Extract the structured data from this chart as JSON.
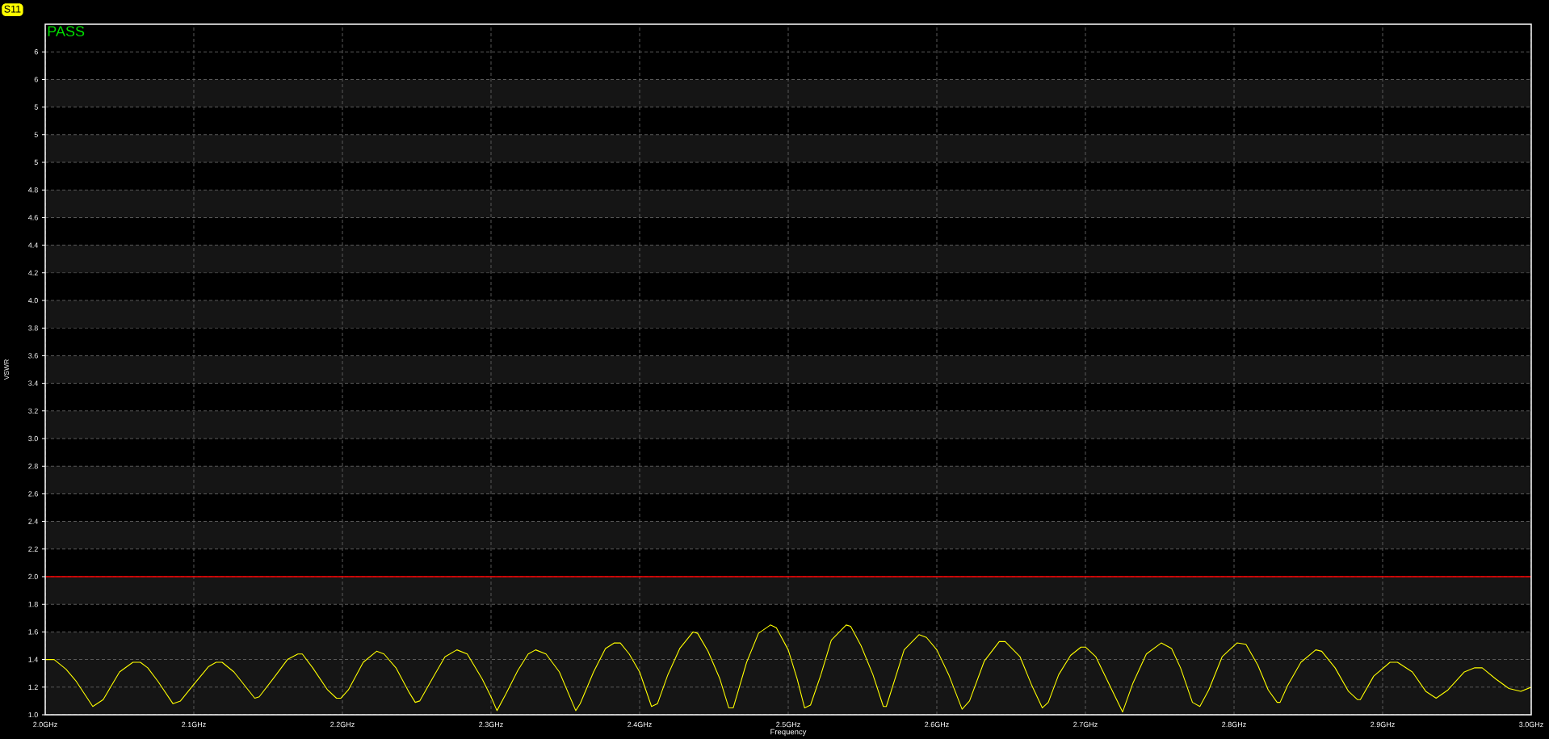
{
  "chart_data": {
    "type": "line",
    "xlabel": "Frequency",
    "ylabel": "VSWR",
    "annotations": [
      "PASS"
    ],
    "x": [
      2.0,
      2.006,
      2.014,
      2.021,
      2.032,
      2.039,
      2.05,
      2.059,
      2.064,
      2.069,
      2.076,
      2.086,
      2.091,
      2.1,
      2.11,
      2.115,
      2.119,
      2.127,
      2.141,
      2.144,
      2.154,
      2.163,
      2.17,
      2.173,
      2.18,
      2.19,
      2.196,
      2.199,
      2.204,
      2.214,
      2.223,
      2.228,
      2.236,
      2.245,
      2.249,
      2.252,
      2.262,
      2.269,
      2.277,
      2.284,
      2.294,
      2.3,
      2.304,
      2.31,
      2.318,
      2.325,
      2.33,
      2.337,
      2.346,
      2.357,
      2.36,
      2.369,
      2.377,
      2.383,
      2.387,
      2.393,
      2.4,
      2.408,
      2.412,
      2.419,
      2.427,
      2.436,
      2.439,
      2.446,
      2.454,
      2.46,
      2.463,
      2.472,
      2.48,
      2.488,
      2.492,
      2.5,
      2.506,
      2.511,
      2.515,
      2.522,
      2.529,
      2.539,
      2.542,
      2.549,
      2.557,
      2.564,
      2.566,
      2.578,
      2.588,
      2.593,
      2.6,
      2.608,
      2.617,
      2.622,
      2.632,
      2.642,
      2.646,
      2.656,
      2.664,
      2.671,
      2.675,
      2.682,
      2.69,
      2.697,
      2.7,
      2.707,
      2.716,
      2.725,
      2.732,
      2.741,
      2.751,
      2.758,
      2.764,
      2.772,
      2.777,
      2.783,
      2.792,
      2.802,
      2.808,
      2.816,
      2.823,
      2.829,
      2.831,
      2.836,
      2.845,
      2.855,
      2.859,
      2.868,
      2.877,
      2.883,
      2.885,
      2.894,
      2.905,
      2.91,
      2.92,
      2.929,
      2.936,
      2.944,
      2.955,
      2.962,
      2.967,
      2.976,
      2.985,
      2.993,
      3.0
    ],
    "series": [
      {
        "name": "S11",
        "color": "#ffff00",
        "values": [
          1.4,
          1.4,
          1.33,
          1.24,
          1.06,
          1.11,
          1.31,
          1.38,
          1.38,
          1.34,
          1.24,
          1.08,
          1.1,
          1.22,
          1.35,
          1.38,
          1.38,
          1.31,
          1.12,
          1.13,
          1.27,
          1.4,
          1.44,
          1.44,
          1.34,
          1.18,
          1.12,
          1.12,
          1.18,
          1.38,
          1.46,
          1.44,
          1.34,
          1.16,
          1.09,
          1.1,
          1.29,
          1.42,
          1.47,
          1.44,
          1.26,
          1.13,
          1.03,
          1.15,
          1.32,
          1.44,
          1.47,
          1.44,
          1.31,
          1.03,
          1.08,
          1.31,
          1.48,
          1.52,
          1.52,
          1.44,
          1.31,
          1.06,
          1.08,
          1.29,
          1.48,
          1.6,
          1.59,
          1.46,
          1.26,
          1.05,
          1.05,
          1.38,
          1.59,
          1.65,
          1.63,
          1.47,
          1.26,
          1.05,
          1.07,
          1.29,
          1.54,
          1.65,
          1.64,
          1.5,
          1.29,
          1.06,
          1.06,
          1.47,
          1.58,
          1.56,
          1.47,
          1.29,
          1.04,
          1.1,
          1.39,
          1.53,
          1.53,
          1.42,
          1.21,
          1.05,
          1.09,
          1.29,
          1.43,
          1.49,
          1.49,
          1.42,
          1.22,
          1.02,
          1.23,
          1.44,
          1.52,
          1.48,
          1.34,
          1.09,
          1.06,
          1.18,
          1.42,
          1.52,
          1.51,
          1.36,
          1.18,
          1.09,
          1.09,
          1.21,
          1.38,
          1.47,
          1.46,
          1.34,
          1.17,
          1.11,
          1.11,
          1.28,
          1.38,
          1.38,
          1.31,
          1.17,
          1.12,
          1.18,
          1.31,
          1.34,
          1.34,
          1.26,
          1.19,
          1.17,
          1.2
        ]
      }
    ],
    "xlim": [
      2.0,
      3.0
    ],
    "ylim": [
      1.0,
      6.0
    ],
    "xticks": [
      {
        "value": 2.0,
        "label": "2.0GHz"
      },
      {
        "value": 2.1,
        "label": "2.1GHz"
      },
      {
        "value": 2.2,
        "label": "2.2GHz"
      },
      {
        "value": 2.3,
        "label": "2.3GHz"
      },
      {
        "value": 2.4,
        "label": "2.4GHz"
      },
      {
        "value": 2.5,
        "label": "2.5GHz"
      },
      {
        "value": 2.6,
        "label": "2.6GHz"
      },
      {
        "value": 2.7,
        "label": "2.7GHz"
      },
      {
        "value": 2.8,
        "label": "2.8GHz"
      },
      {
        "value": 2.9,
        "label": "2.9GHz"
      },
      {
        "value": 3.0,
        "label": "3.0GHz"
      }
    ],
    "yticks": [
      {
        "value": 1.0,
        "label": "1.0"
      },
      {
        "value": 1.2,
        "label": "1.2"
      },
      {
        "value": 1.4,
        "label": "1.4"
      },
      {
        "value": 1.6,
        "label": "1.6"
      },
      {
        "value": 1.8,
        "label": "1.8"
      },
      {
        "value": 2.0,
        "label": "2.0"
      },
      {
        "value": 2.2,
        "label": "2.2"
      },
      {
        "value": 2.4,
        "label": "2.4"
      },
      {
        "value": 2.6,
        "label": "2.6"
      },
      {
        "value": 2.8,
        "label": "2.8"
      },
      {
        "value": 3.0,
        "label": "3.0"
      },
      {
        "value": 3.2,
        "label": "3.2"
      },
      {
        "value": 3.4,
        "label": "3.4"
      },
      {
        "value": 3.6,
        "label": "3.6"
      },
      {
        "value": 3.8,
        "label": "3.8"
      },
      {
        "value": 4.0,
        "label": "4.0"
      },
      {
        "value": 4.2,
        "label": "4.2"
      },
      {
        "value": 4.4,
        "label": "4.4"
      },
      {
        "value": 4.6,
        "label": "4.6"
      },
      {
        "value": 4.8,
        "label": "4.8"
      },
      {
        "value": 5.0,
        "label": "5"
      },
      {
        "value": 5.2,
        "label": "5"
      },
      {
        "value": 5.4,
        "label": "5"
      },
      {
        "value": 5.6,
        "label": "6"
      },
      {
        "value": 5.8,
        "label": "6"
      }
    ],
    "ref_lines": [
      {
        "axis": "y",
        "value": 2.0,
        "color": "#ff0000"
      }
    ],
    "bands": [
      {
        "axis": "y",
        "from": 1.0,
        "to": 1.6,
        "color": "#151515"
      },
      {
        "axis": "y",
        "from": 1.8,
        "to": 2.0,
        "color": "#151515"
      },
      {
        "axis": "y",
        "from": 2.2,
        "to": 2.4,
        "color": "#151515"
      },
      {
        "axis": "y",
        "from": 2.6,
        "to": 2.8,
        "color": "#151515"
      },
      {
        "axis": "y",
        "from": 3.0,
        "to": 3.2,
        "color": "#151515"
      },
      {
        "axis": "y",
        "from": 3.4,
        "to": 3.6,
        "color": "#151515"
      },
      {
        "axis": "y",
        "from": 3.8,
        "to": 4.0,
        "color": "#151515"
      },
      {
        "axis": "y",
        "from": 4.2,
        "to": 4.4,
        "color": "#151515"
      },
      {
        "axis": "y",
        "from": 4.6,
        "to": 4.8,
        "color": "#151515"
      },
      {
        "axis": "y",
        "from": 5.0,
        "to": 5.2,
        "color": "#151515"
      },
      {
        "axis": "y",
        "from": 5.4,
        "to": 5.6,
        "color": "#151515"
      }
    ],
    "grid": true,
    "legend": "top left",
    "marker": "none",
    "line_style": "solid"
  }
}
